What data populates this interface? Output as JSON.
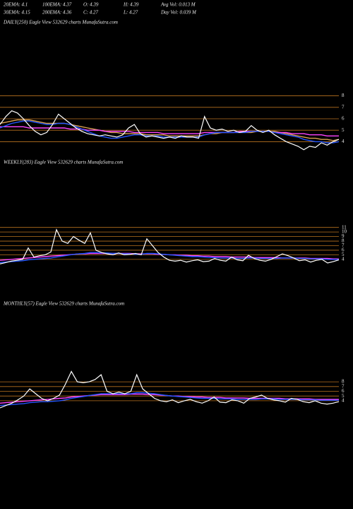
{
  "header": {
    "row1": [
      "20EMA: 4.1",
      "100EMA: 4.37",
      "O: 4.39",
      "H: 4.39",
      "Avg Vol: 0.013 M"
    ],
    "row2": [
      "30EMA: 4.15",
      "200EMA: 4.36",
      "C: 4.27",
      "L: 4.27",
      "Day Vol: 0.039 M"
    ]
  },
  "chart_data": [
    {
      "type": "line",
      "title": "DAILY(250) Eagle  View  532629 charts MunafaSutra.com",
      "ylim": [
        3.1,
        8.9
      ],
      "yticks": [
        8,
        7,
        6,
        5,
        4
      ],
      "grid": true,
      "grid_color": "#b8721f",
      "series": [
        {
          "color": "#d9a050",
          "values": [
            5.6,
            5.7,
            5.8,
            5.9,
            5.9,
            5.9,
            5.8,
            5.7,
            5.6,
            5.6,
            5.6,
            5.6,
            5.5,
            5.4,
            5.3,
            5.2,
            5.1,
            5.0,
            4.9,
            4.8,
            4.8,
            4.7,
            4.7,
            4.7,
            4.7,
            4.6,
            4.6,
            4.6,
            4.6,
            4.5,
            4.5,
            4.5,
            4.5,
            4.5,
            4.5,
            4.6,
            4.7,
            4.7,
            4.8,
            4.8,
            4.8,
            4.8,
            4.8,
            4.8,
            4.9,
            4.9,
            4.9,
            4.9,
            4.8,
            4.7,
            4.6,
            4.5,
            4.4,
            4.3,
            4.3,
            4.2,
            4.2,
            4.1,
            4.2
          ]
        },
        {
          "color": "#ff44ff",
          "values": [
            5.3,
            5.3,
            5.3,
            5.3,
            5.3,
            5.2,
            5.2,
            5.2,
            5.2,
            5.2,
            5.2,
            5.2,
            5.1,
            5.1,
            5.1,
            5.0,
            5.0,
            5.0,
            4.9,
            4.9,
            4.9,
            4.9,
            4.9,
            4.8,
            4.8,
            4.8,
            4.8,
            4.8,
            4.7,
            4.7,
            4.7,
            4.7,
            4.7,
            4.7,
            4.7,
            4.8,
            4.8,
            4.8,
            4.8,
            4.8,
            4.8,
            4.9,
            4.9,
            4.9,
            4.9,
            4.9,
            4.9,
            4.8,
            4.8,
            4.8,
            4.7,
            4.7,
            4.7,
            4.6,
            4.6,
            4.6,
            4.5,
            4.5,
            4.5
          ]
        },
        {
          "color": "#2255ff",
          "values": [
            5.2,
            5.4,
            5.6,
            5.7,
            5.8,
            5.8,
            5.7,
            5.6,
            5.5,
            5.5,
            5.6,
            5.6,
            5.5,
            5.3,
            5.1,
            4.9,
            4.7,
            4.5,
            4.4,
            4.3,
            4.3,
            4.4,
            4.5,
            4.6,
            4.6,
            4.5,
            4.5,
            4.5,
            4.4,
            4.4,
            4.4,
            4.4,
            4.4,
            4.4,
            4.4,
            4.6,
            4.7,
            4.8,
            4.8,
            4.8,
            4.8,
            4.8,
            4.8,
            4.9,
            4.9,
            4.9,
            4.9,
            4.8,
            4.7,
            4.6,
            4.5,
            4.4,
            4.2,
            4.1,
            4.0,
            4.0,
            3.9,
            3.9,
            4.0
          ]
        },
        {
          "color": "#ffffff",
          "values": [
            5.5,
            6.2,
            6.7,
            6.5,
            6.0,
            5.4,
            4.9,
            4.6,
            4.8,
            5.5,
            6.4,
            6.0,
            5.6,
            5.2,
            4.9,
            4.7,
            4.6,
            4.5,
            4.6,
            4.5,
            4.4,
            4.6,
            5.2,
            5.5,
            4.7,
            4.4,
            4.5,
            4.4,
            4.3,
            4.4,
            4.3,
            4.5,
            4.4,
            4.4,
            4.3,
            6.2,
            5.2,
            5.0,
            5.1,
            4.9,
            5.0,
            4.8,
            4.9,
            5.4,
            5.0,
            4.8,
            5.0,
            4.6,
            4.3,
            4.0,
            3.8,
            3.6,
            3.3,
            3.6,
            3.5,
            3.9,
            3.7,
            4.0,
            4.2
          ]
        }
      ]
    },
    {
      "type": "line",
      "title": "WEEKLY(283) Eagle  View  532629 charts MunafaSutra.com",
      "ylim": [
        1.5,
        12.5
      ],
      "yticks": [
        11,
        10,
        9,
        8,
        7,
        6,
        5,
        4
      ],
      "grid": true,
      "grid_color": "#b8721f",
      "series": [
        {
          "color": "#ff44ff",
          "values": [
            3.8,
            3.9,
            4.0,
            4.1,
            4.2,
            4.3,
            4.4,
            4.5,
            4.6,
            4.7,
            4.8,
            4.9,
            5.0,
            5.1,
            5.2,
            5.2,
            5.3,
            5.3,
            5.3,
            5.3,
            5.3,
            5.3,
            5.3,
            5.3,
            5.2,
            5.2,
            5.2,
            5.2,
            5.1,
            5.1,
            5.0,
            5.0,
            4.9,
            4.9,
            4.8,
            4.8,
            4.7,
            4.7,
            4.6,
            4.6,
            4.6,
            4.5,
            4.5,
            4.5,
            4.5,
            4.4,
            4.4,
            4.4,
            4.4,
            4.4,
            4.3,
            4.3,
            4.3,
            4.3,
            4.3,
            4.2,
            4.2,
            4.2,
            4.2,
            4.1,
            4.1
          ]
        },
        {
          "color": "#2255ff",
          "values": [
            3.3,
            3.4,
            3.5,
            3.6,
            3.7,
            3.9,
            4.0,
            4.1,
            4.2,
            4.3,
            4.5,
            4.7,
            4.9,
            5.1,
            5.2,
            5.3,
            5.5,
            5.5,
            5.4,
            5.4,
            5.3,
            5.3,
            5.2,
            5.2,
            5.1,
            5.1,
            5.3,
            5.3,
            5.2,
            5.1,
            5.0,
            4.9,
            4.8,
            4.7,
            4.6,
            4.6,
            4.5,
            4.4,
            4.4,
            4.3,
            4.3,
            4.3,
            4.2,
            4.2,
            4.3,
            4.3,
            4.2,
            4.2,
            4.2,
            4.2,
            4.3,
            4.3,
            4.3,
            4.2,
            4.2,
            4.1,
            4.1,
            4.1,
            4.0,
            4.0,
            4.0
          ]
        },
        {
          "color": "#ffffff",
          "values": [
            3.0,
            3.3,
            3.6,
            3.8,
            4.0,
            6.5,
            4.5,
            4.8,
            5.0,
            5.6,
            10.5,
            8.0,
            7.5,
            9.0,
            8.2,
            7.5,
            9.8,
            6.0,
            5.5,
            5.2,
            5.0,
            5.4,
            5.0,
            5.1,
            5.3,
            5.0,
            8.5,
            7.0,
            5.5,
            4.5,
            3.8,
            3.6,
            3.8,
            3.4,
            3.7,
            3.9,
            3.5,
            3.6,
            4.2,
            3.8,
            3.6,
            4.5,
            3.9,
            3.7,
            4.9,
            4.2,
            3.8,
            3.6,
            4.0,
            4.6,
            5.2,
            4.8,
            4.3,
            3.7,
            3.9,
            3.4,
            3.8,
            4.0,
            3.2,
            3.5,
            3.9
          ]
        }
      ]
    },
    {
      "type": "line",
      "title": "MONTHLY(57) Eagle  View  532629 charts MunafaSutra.com",
      "ylim": [
        1,
        11
      ],
      "yticks": [
        8,
        7,
        6,
        5,
        4
      ],
      "grid": true,
      "grid_color": "#b8721f",
      "series": [
        {
          "color": "#ff44ff",
          "values": [
            3.5,
            3.6,
            3.7,
            3.8,
            3.9,
            4.0,
            4.1,
            4.2,
            4.3,
            4.4,
            4.5,
            4.6,
            4.8,
            4.9,
            5.0,
            5.1,
            5.2,
            5.3,
            5.3,
            5.3,
            5.3,
            5.3,
            5.4,
            5.4,
            5.4,
            5.3,
            5.3,
            5.2,
            5.1,
            5.0,
            5.0,
            4.9,
            4.9,
            4.8,
            4.8,
            4.7,
            4.7,
            4.7,
            4.6,
            4.6,
            4.6,
            4.6,
            4.5,
            4.5,
            4.5,
            4.5,
            4.5,
            4.5,
            4.4,
            4.4,
            4.4,
            4.4,
            4.4,
            4.3,
            4.3,
            4.3,
            4.3,
            4.3
          ]
        },
        {
          "color": "#2255ff",
          "values": [
            3.0,
            3.1,
            3.2,
            3.3,
            3.4,
            3.6,
            3.7,
            3.8,
            3.8,
            3.9,
            4.0,
            4.2,
            4.5,
            4.7,
            4.9,
            5.1,
            5.3,
            5.5,
            5.5,
            5.5,
            5.5,
            5.5,
            5.5,
            5.7,
            5.7,
            5.6,
            5.5,
            5.3,
            5.1,
            5.0,
            4.9,
            4.8,
            4.7,
            4.6,
            4.5,
            4.5,
            4.5,
            4.4,
            4.4,
            4.4,
            4.3,
            4.3,
            4.3,
            4.3,
            4.4,
            4.4,
            4.4,
            4.3,
            4.3,
            4.3,
            4.3,
            4.2,
            4.2,
            4.2,
            4.1,
            4.1,
            4.1,
            4.1
          ]
        },
        {
          "color": "#ffffff",
          "values": [
            2.5,
            3.0,
            3.5,
            4.2,
            5.0,
            6.5,
            5.5,
            4.5,
            4.0,
            4.5,
            5.2,
            7.5,
            10.2,
            8.0,
            7.8,
            8.0,
            8.5,
            9.5,
            6.0,
            5.5,
            5.8,
            5.5,
            6.0,
            9.5,
            6.5,
            5.5,
            4.5,
            4.0,
            3.8,
            4.2,
            3.6,
            4.0,
            4.3,
            3.8,
            3.5,
            4.0,
            4.8,
            3.7,
            3.6,
            4.2,
            4.0,
            3.5,
            4.5,
            4.8,
            5.2,
            4.5,
            4.2,
            4.0,
            3.7,
            4.5,
            4.3,
            3.8,
            3.6,
            4.0,
            3.5,
            3.3,
            3.5,
            3.8
          ]
        }
      ]
    }
  ]
}
